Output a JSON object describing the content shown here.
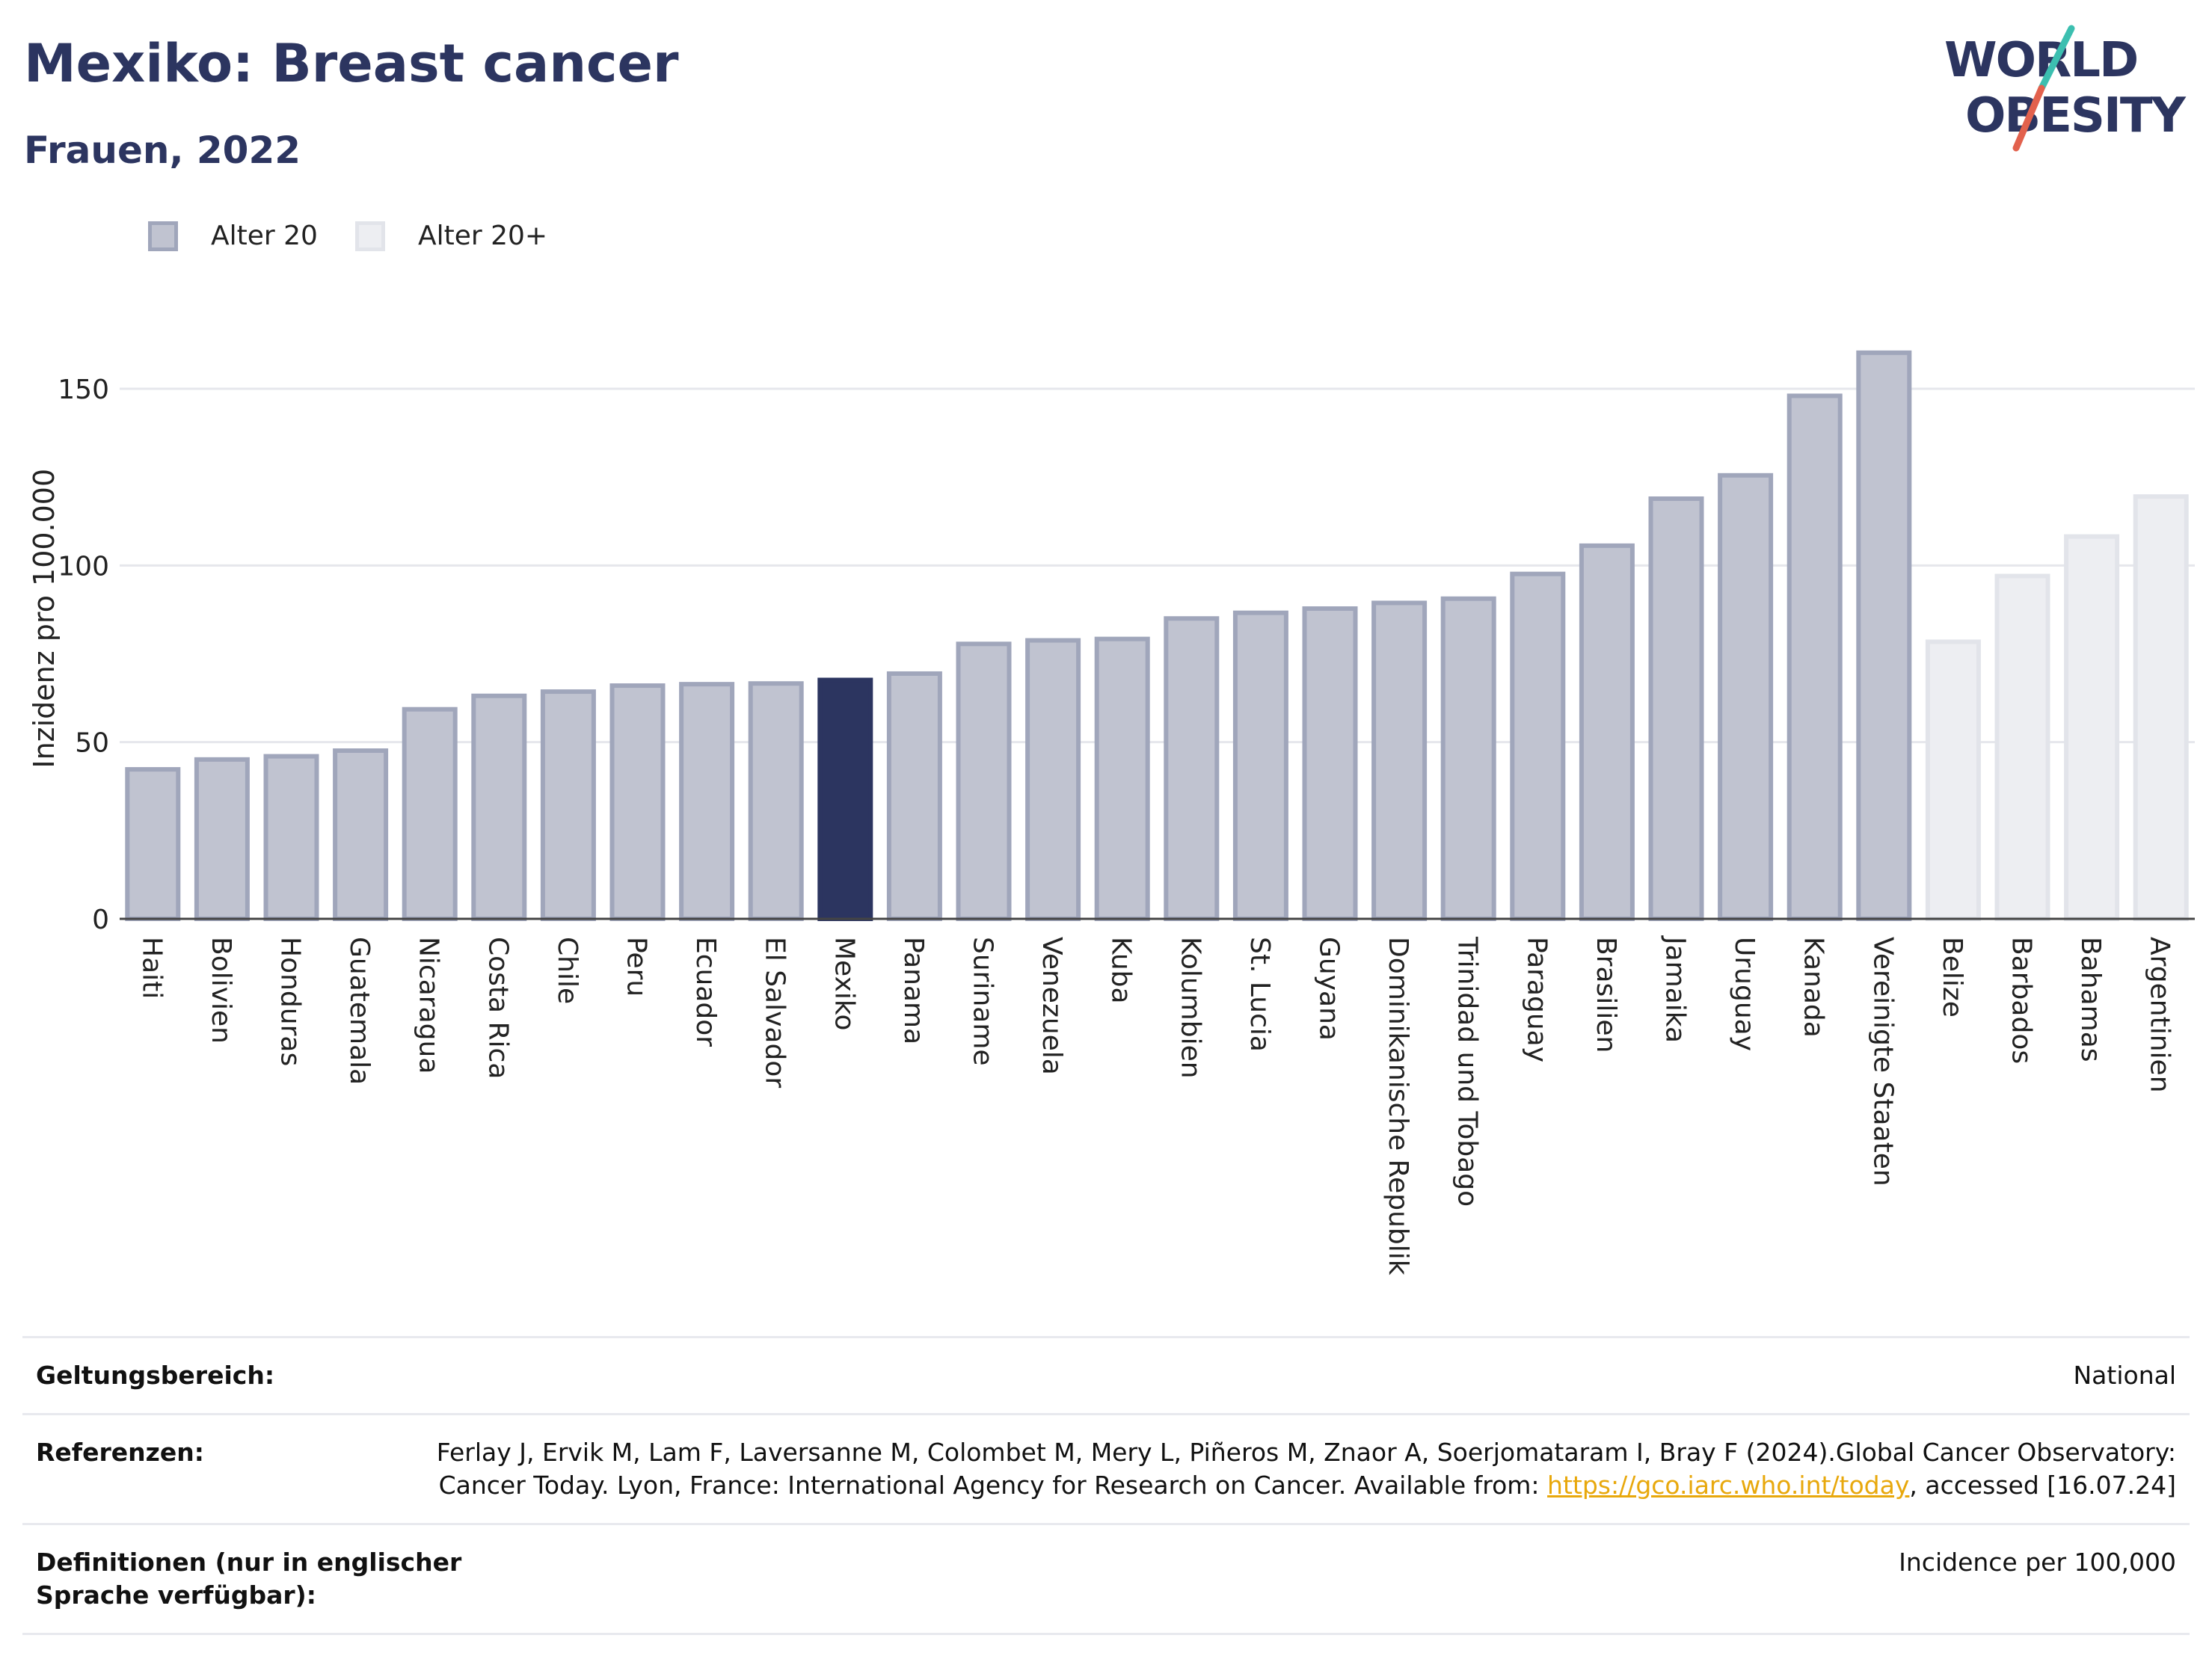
{
  "header": {
    "title": "Mexiko: Breast cancer",
    "subtitle": "Frauen, 2022",
    "logo_line1": "WORLD",
    "logo_line2": "OBESITY"
  },
  "legend": [
    {
      "label": "Alter 20",
      "fill": "#c0c3d0",
      "stroke": "#a0a6bb"
    },
    {
      "label": "Alter 20+",
      "fill": "#edeef2",
      "stroke": "#e2e4ea"
    }
  ],
  "colors": {
    "highlight": "#2c3560",
    "primary_fill": "#c0c3d0",
    "primary_stroke": "#a0a6bb",
    "secondary_fill": "#edeef2",
    "secondary_stroke": "#e2e4ea",
    "title": "#2c3560",
    "logo_slash_teal": "#3cbfb0",
    "logo_slash_red": "#e2614d"
  },
  "chart_data": {
    "type": "bar",
    "title": "Mexiko: Breast cancer",
    "subtitle": "Frauen, 2022",
    "ylabel": "Inzidenz pro 100.000",
    "xlabel": "",
    "ylim": [
      0,
      170
    ],
    "yticks": [
      0,
      50,
      100,
      150
    ],
    "grid": true,
    "legend_position": "top-left",
    "highlight": "Mexiko",
    "categories": [
      "Haiti",
      "Bolivien",
      "Honduras",
      "Guatemala",
      "Nicaragua",
      "Costa Rica",
      "Chile",
      "Peru",
      "Ecuador",
      "El Salvador",
      "Mexiko",
      "Panama",
      "Suriname",
      "Venezuela",
      "Kuba",
      "Kolumbien",
      "St. Lucia",
      "Guyana",
      "Dominikanische Republik",
      "Trinidad und Tobago",
      "Paraguay",
      "Brasilien",
      "Jamaika",
      "Uruguay",
      "Kanada",
      "Vereinigte Staaten",
      "Belize",
      "Barbados",
      "Bahamas",
      "Argentinien"
    ],
    "values": [
      42.3,
      45.1,
      46.0,
      47.6,
      59.3,
      63.1,
      64.3,
      66.0,
      66.4,
      66.6,
      67.6,
      69.4,
      77.8,
      78.8,
      79.2,
      85.0,
      86.6,
      87.8,
      89.4,
      90.6,
      97.6,
      105.6,
      118.9,
      125.5,
      148.0,
      160.2,
      78.4,
      97.0,
      108.2,
      119.5
    ],
    "groups": [
      "Alter 20",
      "Alter 20",
      "Alter 20",
      "Alter 20",
      "Alter 20",
      "Alter 20",
      "Alter 20",
      "Alter 20",
      "Alter 20",
      "Alter 20",
      "Alter 20",
      "Alter 20",
      "Alter 20",
      "Alter 20",
      "Alter 20",
      "Alter 20",
      "Alter 20",
      "Alter 20",
      "Alter 20",
      "Alter 20",
      "Alter 20",
      "Alter 20",
      "Alter 20",
      "Alter 20",
      "Alter 20",
      "Alter 20",
      "Alter 20+",
      "Alter 20+",
      "Alter 20+",
      "Alter 20+"
    ]
  },
  "info": {
    "scope_label": "Geltungsbereich:",
    "scope_value": "National",
    "refs_label": "Referenzen:",
    "refs_text_before": "Ferlay J, Ervik M, Lam F, Laversanne M, Colombet M, Mery L, Piñeros M, Znaor A, Soerjomataram I, Bray F (2024).Global Cancer Observatory: Cancer Today. Lyon, France: International Agency for Research on Cancer. Available from: ",
    "refs_link": "https://gco.iarc.who.int/today",
    "refs_text_after": ", accessed [16.07.24]",
    "defs_label": "Definitionen (nur in englischer Sprache verfügbar):",
    "defs_value": "Incidence per 100,000"
  }
}
